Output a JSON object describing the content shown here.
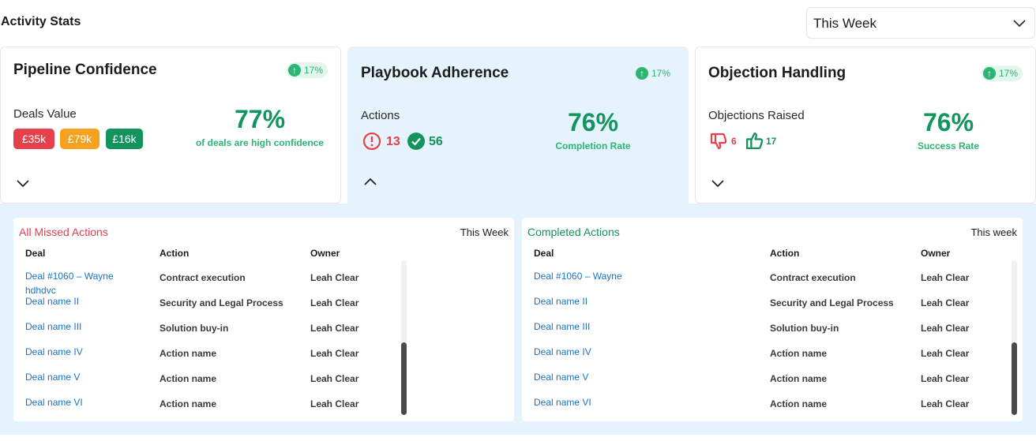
{
  "header": {
    "title": "Activity Stats",
    "period_select": "This Week"
  },
  "cards": {
    "pipeline": {
      "title": "Pipeline Confidence",
      "badge": "17%",
      "sub": "Deals Value",
      "chips": [
        {
          "label": "£35k",
          "color": "#e5404b"
        },
        {
          "label": "£79k",
          "color": "#f4a220"
        },
        {
          "label": "£16k",
          "color": "#14935c"
        }
      ],
      "big": "77%",
      "caption": "of deals are high confidence"
    },
    "playbook": {
      "title": "Playbook Adherence",
      "badge": "17%",
      "sub": "Actions",
      "missed": "13",
      "done": "56",
      "big": "76%",
      "caption": "Completion Rate"
    },
    "objection": {
      "title": "Objection Handling",
      "badge": "17%",
      "sub": "Objections Raised",
      "down": "6",
      "up": "17",
      "big": "76%",
      "caption": "Success Rate"
    }
  },
  "missed": {
    "title": "All Missed Actions",
    "title_color": "#e5404b",
    "period": "This Week",
    "columns": [
      "Deal",
      "Action",
      "Owner"
    ],
    "rows": [
      {
        "deal": "Deal #1060 – Wayne hdhdvc",
        "action": "Contract execution",
        "owner": "Leah Clear"
      },
      {
        "deal": "Deal name II",
        "action": "Security and Legal Process",
        "owner": "Leah Clear"
      },
      {
        "deal": "Deal name III",
        "action": "Solution buy-in",
        "owner": "Leah Clear"
      },
      {
        "deal": "Deal name IV",
        "action": "Action name",
        "owner": "Leah Clear"
      },
      {
        "deal": "Deal name V",
        "action": "Action name",
        "owner": "Leah Clear"
      },
      {
        "deal": "Deal name VI",
        "action": "Action name",
        "owner": "Leah Clear"
      }
    ]
  },
  "completed": {
    "title": "Completed Actions",
    "title_color": "#14935c",
    "period": "This week",
    "columns": [
      "Deal",
      "Action",
      "Owner"
    ],
    "rows": [
      {
        "deal": "Deal #1060 – Wayne",
        "action": "Contract execution",
        "owner": "Leah Clear"
      },
      {
        "deal": "Deal name II",
        "action": "Security and Legal Process",
        "owner": "Leah Clear"
      },
      {
        "deal": "Deal name III",
        "action": "Solution buy-in",
        "owner": "Leah Clear"
      },
      {
        "deal": "Deal name IV",
        "action": "Action name",
        "owner": "Leah Clear"
      },
      {
        "deal": "Deal name V",
        "action": "Action name",
        "owner": "Leah Clear"
      },
      {
        "deal": "Deal name VI",
        "action": "Action name",
        "owner": "Leah Clear"
      }
    ]
  }
}
